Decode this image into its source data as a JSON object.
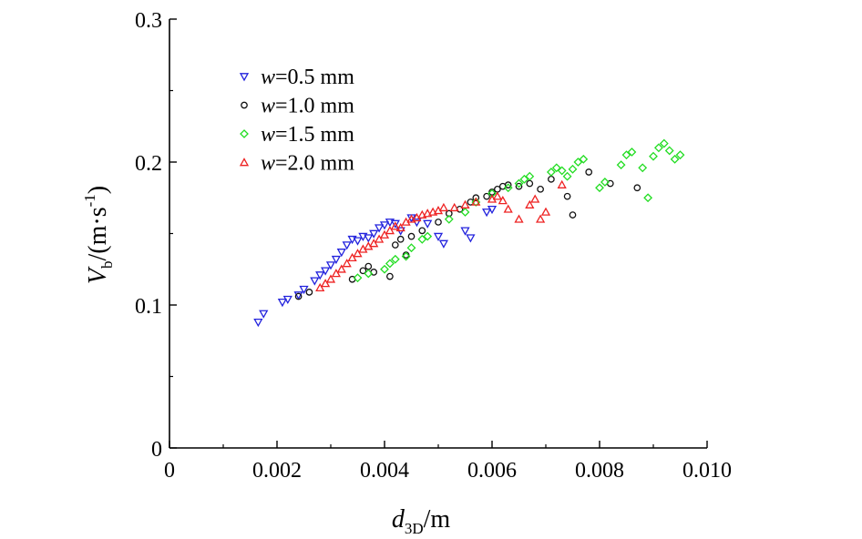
{
  "chart_data": {
    "type": "scatter",
    "xlabel": {
      "main": "d",
      "sub": "3D",
      "unit": "/m"
    },
    "ylabel": {
      "main": "V",
      "sub": "b",
      "unit_open": "/(m·s",
      "unit_exp": "-1",
      "unit_close": ")"
    },
    "xlim": [
      0,
      0.01
    ],
    "ylim": [
      0,
      0.3
    ],
    "x_ticks": [
      {
        "value": 0,
        "label": "0"
      },
      {
        "value": 0.002,
        "label": "0.002"
      },
      {
        "value": 0.004,
        "label": "0.004"
      },
      {
        "value": 0.006,
        "label": "0.006"
      },
      {
        "value": 0.008,
        "label": "0.008"
      },
      {
        "value": 0.01,
        "label": "0.010"
      }
    ],
    "y_ticks": [
      {
        "value": 0,
        "label": "0"
      },
      {
        "value": 0.1,
        "label": "0.1"
      },
      {
        "value": 0.2,
        "label": "0.2"
      },
      {
        "value": 0.3,
        "label": "0.3"
      }
    ],
    "legend_position": "upper-left",
    "series": [
      {
        "name": "w=0.5 mm",
        "var": "w",
        "value_text": "=0.5 mm",
        "color": "#2222dd",
        "marker": "triangle-down",
        "points": [
          [
            0.00165,
            0.088
          ],
          [
            0.00175,
            0.094
          ],
          [
            0.0021,
            0.102
          ],
          [
            0.0022,
            0.104
          ],
          [
            0.0024,
            0.107
          ],
          [
            0.0025,
            0.111
          ],
          [
            0.0027,
            0.117
          ],
          [
            0.0028,
            0.121
          ],
          [
            0.0029,
            0.124
          ],
          [
            0.003,
            0.128
          ],
          [
            0.0031,
            0.132
          ],
          [
            0.0032,
            0.137
          ],
          [
            0.0033,
            0.142
          ],
          [
            0.0034,
            0.146
          ],
          [
            0.0035,
            0.145
          ],
          [
            0.0036,
            0.148
          ],
          [
            0.0037,
            0.147
          ],
          [
            0.0038,
            0.15
          ],
          [
            0.0039,
            0.154
          ],
          [
            0.004,
            0.156
          ],
          [
            0.0041,
            0.158
          ],
          [
            0.0042,
            0.157
          ],
          [
            0.0043,
            0.152
          ],
          [
            0.0045,
            0.161
          ],
          [
            0.0046,
            0.158
          ],
          [
            0.0048,
            0.157
          ],
          [
            0.005,
            0.148
          ],
          [
            0.0051,
            0.143
          ],
          [
            0.0055,
            0.152
          ],
          [
            0.0056,
            0.147
          ],
          [
            0.0059,
            0.165
          ],
          [
            0.006,
            0.167
          ]
        ]
      },
      {
        "name": "w=1.0 mm",
        "var": "w",
        "value_text": "=1.0 mm",
        "color": "#111111",
        "marker": "circle",
        "points": [
          [
            0.0024,
            0.106
          ],
          [
            0.0026,
            0.109
          ],
          [
            0.0034,
            0.118
          ],
          [
            0.0036,
            0.124
          ],
          [
            0.0037,
            0.127
          ],
          [
            0.0038,
            0.123
          ],
          [
            0.0041,
            0.12
          ],
          [
            0.0042,
            0.142
          ],
          [
            0.0043,
            0.146
          ],
          [
            0.0044,
            0.135
          ],
          [
            0.0045,
            0.148
          ],
          [
            0.0047,
            0.152
          ],
          [
            0.005,
            0.158
          ],
          [
            0.0052,
            0.164
          ],
          [
            0.0054,
            0.167
          ],
          [
            0.0056,
            0.172
          ],
          [
            0.0057,
            0.175
          ],
          [
            0.0059,
            0.176
          ],
          [
            0.006,
            0.179
          ],
          [
            0.0061,
            0.181
          ],
          [
            0.0062,
            0.183
          ],
          [
            0.0063,
            0.184
          ],
          [
            0.0065,
            0.183
          ],
          [
            0.0067,
            0.185
          ],
          [
            0.0069,
            0.181
          ],
          [
            0.0071,
            0.188
          ],
          [
            0.0074,
            0.176
          ],
          [
            0.0075,
            0.163
          ],
          [
            0.0078,
            0.193
          ],
          [
            0.0082,
            0.185
          ],
          [
            0.0087,
            0.182
          ]
        ]
      },
      {
        "name": "w=1.5 mm",
        "var": "w",
        "value_text": "=1.5 mm",
        "color": "#22dd22",
        "marker": "diamond",
        "points": [
          [
            0.0035,
            0.119
          ],
          [
            0.0037,
            0.122
          ],
          [
            0.004,
            0.125
          ],
          [
            0.0041,
            0.129
          ],
          [
            0.0042,
            0.132
          ],
          [
            0.0044,
            0.134
          ],
          [
            0.0045,
            0.14
          ],
          [
            0.0047,
            0.146
          ],
          [
            0.0048,
            0.148
          ],
          [
            0.0052,
            0.16
          ],
          [
            0.0055,
            0.165
          ],
          [
            0.0057,
            0.172
          ],
          [
            0.006,
            0.178
          ],
          [
            0.0063,
            0.182
          ],
          [
            0.0065,
            0.185
          ],
          [
            0.0066,
            0.188
          ],
          [
            0.0067,
            0.19
          ],
          [
            0.0071,
            0.193
          ],
          [
            0.0072,
            0.196
          ],
          [
            0.0073,
            0.194
          ],
          [
            0.0074,
            0.19
          ],
          [
            0.0075,
            0.195
          ],
          [
            0.0076,
            0.2
          ],
          [
            0.0077,
            0.202
          ],
          [
            0.008,
            0.182
          ],
          [
            0.0081,
            0.186
          ],
          [
            0.0084,
            0.198
          ],
          [
            0.0085,
            0.205
          ],
          [
            0.0086,
            0.207
          ],
          [
            0.0088,
            0.196
          ],
          [
            0.0089,
            0.175
          ],
          [
            0.009,
            0.204
          ],
          [
            0.0091,
            0.21
          ],
          [
            0.0092,
            0.213
          ],
          [
            0.0093,
            0.208
          ],
          [
            0.0094,
            0.202
          ],
          [
            0.0095,
            0.205
          ]
        ]
      },
      {
        "name": "w=2.0 mm",
        "var": "w",
        "value_text": "=2.0 mm",
        "color": "#ee2222",
        "marker": "triangle-up",
        "points": [
          [
            0.0028,
            0.112
          ],
          [
            0.0029,
            0.115
          ],
          [
            0.003,
            0.118
          ],
          [
            0.0031,
            0.122
          ],
          [
            0.0032,
            0.125
          ],
          [
            0.0033,
            0.129
          ],
          [
            0.0034,
            0.133
          ],
          [
            0.0035,
            0.136
          ],
          [
            0.0036,
            0.139
          ],
          [
            0.0037,
            0.141
          ],
          [
            0.0038,
            0.143
          ],
          [
            0.0039,
            0.146
          ],
          [
            0.004,
            0.149
          ],
          [
            0.0041,
            0.152
          ],
          [
            0.0042,
            0.155
          ],
          [
            0.0043,
            0.154
          ],
          [
            0.0044,
            0.158
          ],
          [
            0.0045,
            0.16
          ],
          [
            0.0046,
            0.161
          ],
          [
            0.0047,
            0.163
          ],
          [
            0.0048,
            0.164
          ],
          [
            0.0049,
            0.165
          ],
          [
            0.005,
            0.166
          ],
          [
            0.0051,
            0.168
          ],
          [
            0.0053,
            0.168
          ],
          [
            0.0055,
            0.17
          ],
          [
            0.0057,
            0.172
          ],
          [
            0.006,
            0.174
          ],
          [
            0.0061,
            0.176
          ],
          [
            0.0062,
            0.173
          ],
          [
            0.0063,
            0.167
          ],
          [
            0.0065,
            0.16
          ],
          [
            0.0067,
            0.17
          ],
          [
            0.0068,
            0.174
          ],
          [
            0.0069,
            0.16
          ],
          [
            0.007,
            0.165
          ],
          [
            0.0073,
            0.184
          ]
        ]
      }
    ]
  }
}
